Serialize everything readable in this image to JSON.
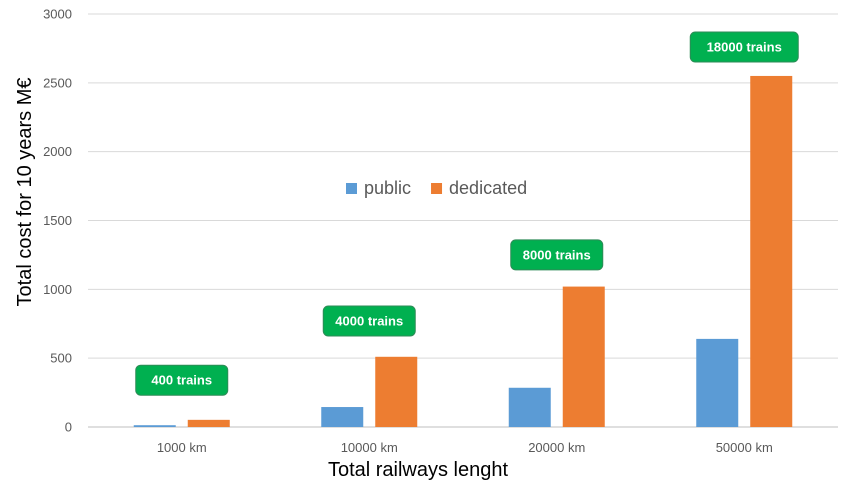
{
  "chart_data": {
    "type": "bar",
    "xlabel": "Total railways lenght",
    "ylabel": "Total cost for 10  years M€",
    "categories": [
      "1000 km",
      "10000 km",
      "20000 km",
      "50000 km"
    ],
    "series": [
      {
        "name": "public",
        "color": "#5b9bd5",
        "values": [
          13,
          145,
          285,
          640
        ]
      },
      {
        "name": "dedicated",
        "color": "#ed7d31",
        "values": [
          52,
          510,
          1020,
          2550
        ]
      }
    ],
    "ylim": [
      0,
      3000
    ],
    "yticks": [
      0,
      500,
      1000,
      1500,
      2000,
      2500,
      3000
    ],
    "grid": true,
    "legend_position": "center",
    "annotations": [
      {
        "text": "400 trains",
        "category": "1000 km",
        "value": 340
      },
      {
        "text": "4000 trains",
        "category": "10000 km",
        "value": 770
      },
      {
        "text": "8000 trains",
        "category": "20000 km",
        "value": 1250
      },
      {
        "text": "18000 trains",
        "category": "50000 km",
        "value": 2760
      }
    ],
    "annotation_color": "#00b050"
  }
}
